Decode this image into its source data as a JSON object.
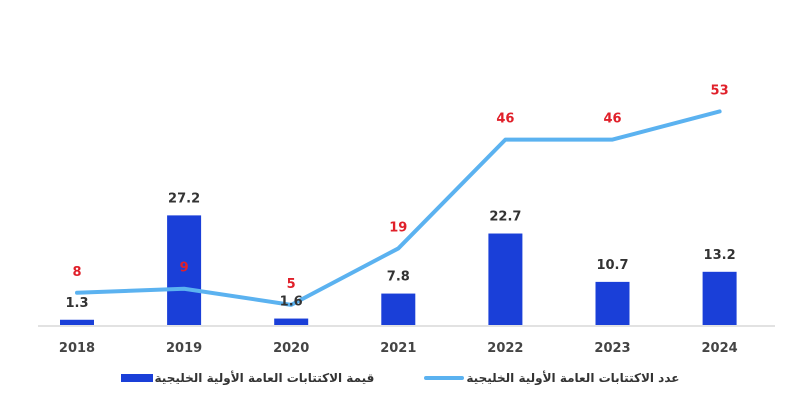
{
  "chart_data": {
    "type": "bar+line",
    "categories": [
      "2018",
      "2019",
      "2020",
      "2021",
      "2022",
      "2023",
      "2024"
    ],
    "series": [
      {
        "name": "قيمة الاكتتابات العامة الأولية الخليجية",
        "type": "bar",
        "color": "#1a3fd8",
        "label_color": "#333333",
        "values": [
          1.3,
          27.2,
          1.6,
          7.8,
          22.7,
          10.7,
          13.2
        ]
      },
      {
        "name": "عدد الاكتتابات العامة الأولية الخليجية",
        "type": "line",
        "color": "#5bb2f0",
        "label_color": "#e0202a",
        "values": [
          8,
          9,
          5,
          19,
          46,
          46,
          53
        ]
      }
    ],
    "legend_position": "bottom",
    "grid": false
  }
}
